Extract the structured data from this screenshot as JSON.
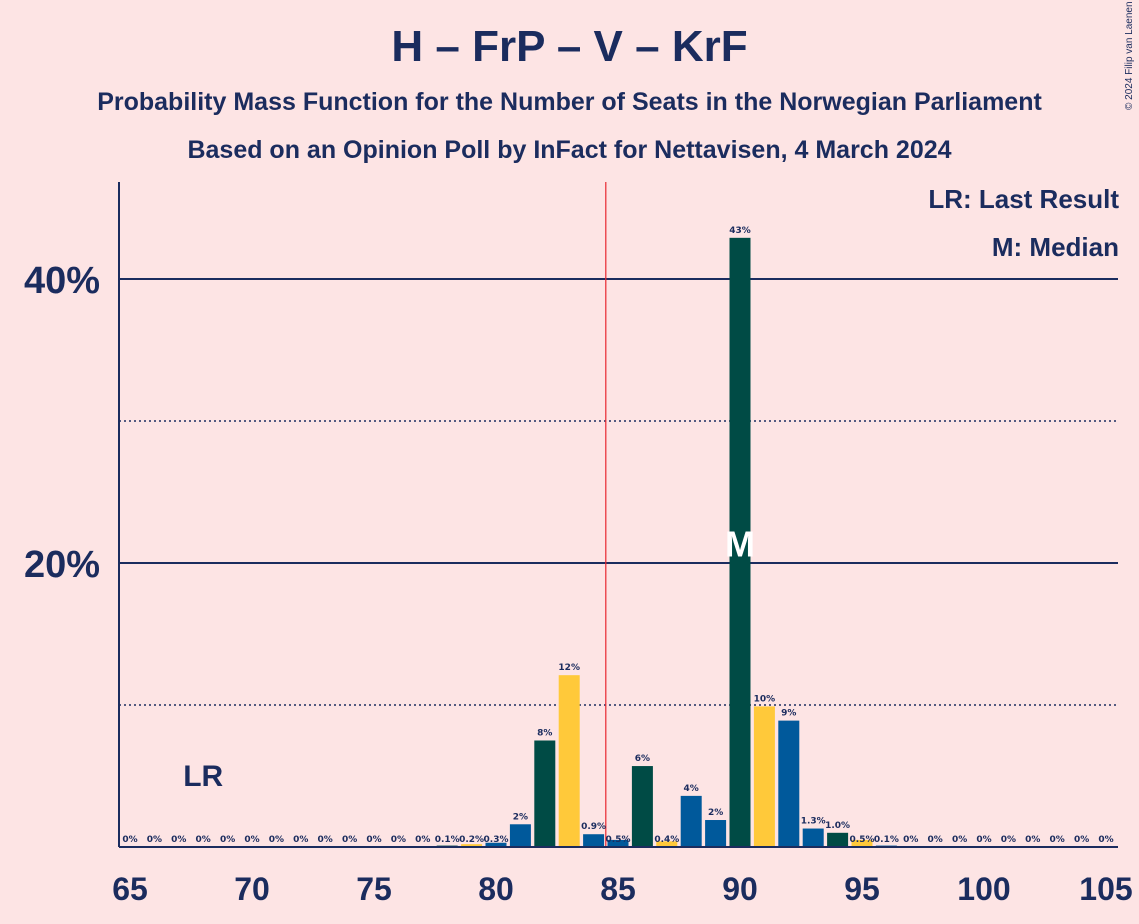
{
  "title": "H – FrP – V – KrF",
  "subtitle_1": "Probability Mass Function for the Number of Seats in the Norwegian Parliament",
  "subtitle_2": "Based on an Opinion Poll by InFact for Nettavisen, 4 March 2024",
  "copyright": "© 2024 Filip van Laenen",
  "legend": {
    "last_result": "LR: Last Result",
    "median": "M: Median"
  },
  "markers": {
    "last_result_label": "LR",
    "median_label": "M"
  },
  "colors": {
    "background": "#fde4e4",
    "text": "#1b2c5e",
    "green": "#004b45",
    "yellow": "#ffc93a",
    "blue": "#00599b",
    "majority_line": "#e8272f"
  },
  "chart_data": {
    "type": "bar",
    "x": [
      65,
      66,
      67,
      68,
      69,
      70,
      71,
      72,
      73,
      74,
      75,
      76,
      77,
      78,
      79,
      80,
      81,
      82,
      83,
      84,
      85,
      86,
      87,
      88,
      89,
      90,
      91,
      92,
      93,
      94,
      95,
      96,
      97,
      98,
      99,
      100,
      101,
      102,
      103,
      104,
      105
    ],
    "values": [
      0,
      0,
      0,
      0,
      0,
      0,
      0,
      0,
      0,
      0,
      0,
      0,
      0,
      0.1,
      0.2,
      0.3,
      1.6,
      7.5,
      12.1,
      0.9,
      0.5,
      5.7,
      0.4,
      3.6,
      1.9,
      42.9,
      9.9,
      8.9,
      1.3,
      1.0,
      0.5,
      0.1,
      0,
      0,
      0,
      0,
      0,
      0,
      0,
      0,
      0
    ],
    "data_labels": [
      "0%",
      "0%",
      "0%",
      "0%",
      "0%",
      "0%",
      "0%",
      "0%",
      "0%",
      "0%",
      "0%",
      "0%",
      "0%",
      "0.1%",
      "0.2%",
      "0.3%",
      "2%",
      "8%",
      "12%",
      "0.9%",
      "0.5%",
      "6%",
      "0.4%",
      "4%",
      "2%",
      "43%",
      "10%",
      "9%",
      "1.3%",
      "1.0%",
      "0.5%",
      "0.1%",
      "0%",
      "0%",
      "0%",
      "0%",
      "0%",
      "0%",
      "0%",
      "0%",
      "0%"
    ],
    "bar_colors": [
      "blue",
      "green",
      "yellow",
      "blue",
      "green",
      "yellow",
      "blue",
      "green",
      "yellow",
      "blue",
      "green",
      "yellow",
      "blue",
      "green",
      "yellow",
      "blue",
      "blue",
      "green",
      "yellow",
      "blue",
      "blue",
      "green",
      "yellow",
      "blue",
      "blue",
      "green",
      "yellow",
      "blue",
      "blue",
      "green",
      "yellow",
      "blue",
      "blue",
      "green",
      "yellow",
      "blue",
      "blue",
      "green",
      "yellow",
      "blue",
      "blue"
    ],
    "x_ticks": [
      "65",
      "70",
      "75",
      "80",
      "85",
      "90",
      "95",
      "100",
      "105"
    ],
    "y_ticks": [
      "20%",
      "40%"
    ],
    "ylim": [
      0,
      46.8
    ],
    "xlim": [
      65,
      105
    ],
    "last_result": 68,
    "median": 90,
    "majority": 85,
    "grid_major": [
      20,
      40
    ],
    "grid_minor": [
      10,
      30
    ]
  }
}
